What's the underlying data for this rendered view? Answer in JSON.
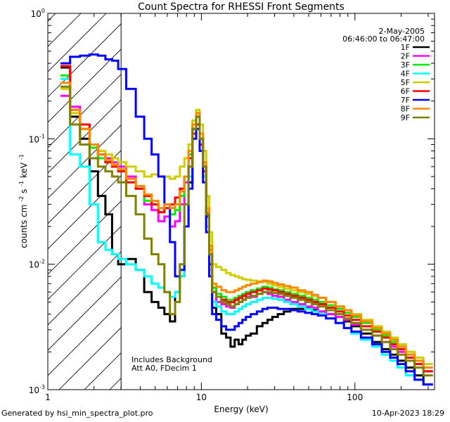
{
  "chart_data": {
    "type": "line",
    "title": "Count Spectra for RHESSI Front Segments",
    "xlabel": "Energy (keV)",
    "ylabel_parts": [
      "counts cm",
      "-2",
      " s",
      "-1",
      " keV",
      "-1"
    ],
    "xscale": "log",
    "yscale": "log",
    "xlim": [
      1.0,
      330.0
    ],
    "ylim": [
      0.001,
      1.0
    ],
    "x_ticks": [
      {
        "value": 1,
        "label": "1"
      },
      {
        "value": 10,
        "label": "10"
      },
      {
        "value": 100,
        "label": "100"
      }
    ],
    "y_ticks": [
      {
        "value": 1.0,
        "base": "10",
        "exp": "0"
      },
      {
        "value": 0.1,
        "base": "10",
        "exp": "-1"
      },
      {
        "value": 0.01,
        "base": "10",
        "exp": "-2"
      },
      {
        "value": 0.001,
        "base": "10",
        "exp": "-3"
      }
    ],
    "date_label": "2-May-2005",
    "time_range": "06:46:00 to 06:47:00",
    "annotations": [
      "Includes Background",
      "Att A0, FDecim 1"
    ],
    "hatched_region_x": [
      1.0,
      3.0
    ],
    "x": [
      1.3,
      1.5,
      1.75,
      2.0,
      2.25,
      2.5,
      2.75,
      3.0,
      3.5,
      4.0,
      4.5,
      5.0,
      5.5,
      6.0,
      6.5,
      7.0,
      7.5,
      8.0,
      8.5,
      9.0,
      9.5,
      10.0,
      10.5,
      11.0,
      11.5,
      12.0,
      13.0,
      14.0,
      15.0,
      16.0,
      17.0,
      18.0,
      19.0,
      20.0,
      22.0,
      24.0,
      26.0,
      28.0,
      30.0,
      33.0,
      36.0,
      40.0,
      45.0,
      50.0,
      55.0,
      60.0,
      70.0,
      80.0,
      90.0,
      100.0,
      120.0,
      140.0,
      160.0,
      180.0,
      200.0,
      230.0,
      260.0,
      300.0
    ],
    "series": [
      {
        "name": "1F",
        "color": "#000000",
        "values": [
          0.37,
          0.15,
          0.1,
          0.055,
          0.035,
          0.025,
          0.012,
          0.01,
          0.011,
          0.009,
          0.006,
          0.005,
          0.0045,
          0.004,
          0.0035,
          0.006,
          0.008,
          0.02,
          0.045,
          0.12,
          0.16,
          0.1,
          0.06,
          0.02,
          0.01,
          0.0045,
          0.004,
          0.0028,
          0.0026,
          0.0022,
          0.0025,
          0.0023,
          0.0025,
          0.0027,
          0.0028,
          0.0032,
          0.0034,
          0.0036,
          0.0038,
          0.004,
          0.0042,
          0.0044,
          0.0044,
          0.0045,
          0.0043,
          0.0042,
          0.004,
          0.0038,
          0.0035,
          0.0032,
          0.0028,
          0.0024,
          0.0021,
          0.0019,
          0.0017,
          0.0015,
          0.0013,
          0.0011
        ]
      },
      {
        "name": "2F",
        "color": "#ff00ff",
        "values": [
          0.22,
          0.18,
          0.13,
          0.09,
          0.075,
          0.07,
          0.065,
          0.06,
          0.05,
          0.04,
          0.03,
          0.027,
          0.022,
          0.024,
          0.02,
          0.022,
          0.03,
          0.045,
          0.07,
          0.12,
          0.15,
          0.1,
          0.06,
          0.025,
          0.012,
          0.006,
          0.005,
          0.0048,
          0.0046,
          0.0045,
          0.0048,
          0.005,
          0.0052,
          0.0055,
          0.0055,
          0.0058,
          0.006,
          0.0058,
          0.0056,
          0.0055,
          0.0052,
          0.005,
          0.0048,
          0.0046,
          0.0045,
          0.0042,
          0.004,
          0.0038,
          0.0036,
          0.0033,
          0.003,
          0.0027,
          0.0024,
          0.0022,
          0.002,
          0.0018,
          0.0016,
          0.0014
        ]
      },
      {
        "name": "3F",
        "color": "#00ee00",
        "values": [
          0.32,
          0.17,
          0.12,
          0.085,
          0.07,
          0.065,
          0.06,
          0.055,
          0.045,
          0.04,
          0.032,
          0.03,
          0.026,
          0.028,
          0.025,
          0.027,
          0.035,
          0.05,
          0.075,
          0.13,
          0.16,
          0.11,
          0.065,
          0.026,
          0.013,
          0.0065,
          0.0058,
          0.0055,
          0.0052,
          0.0052,
          0.0054,
          0.0056,
          0.0058,
          0.006,
          0.0062,
          0.0064,
          0.0066,
          0.0065,
          0.0063,
          0.0062,
          0.006,
          0.0058,
          0.0056,
          0.0054,
          0.0052,
          0.005,
          0.0047,
          0.0044,
          0.0041,
          0.0038,
          0.0034,
          0.003,
          0.0027,
          0.0024,
          0.0022,
          0.0019,
          0.0017,
          0.0015
        ]
      },
      {
        "name": "4F",
        "color": "#00ffff",
        "values": [
          0.3,
          0.075,
          0.06,
          0.03,
          0.015,
          0.013,
          0.012,
          0.011,
          0.01,
          0.009,
          0.008,
          0.007,
          0.0065,
          0.006,
          0.0055,
          0.006,
          0.008,
          0.02,
          0.05,
          0.12,
          0.15,
          0.09,
          0.05,
          0.02,
          0.009,
          0.005,
          0.0046,
          0.0042,
          0.004,
          0.004,
          0.0042,
          0.0044,
          0.0046,
          0.0048,
          0.005,
          0.0052,
          0.0054,
          0.0054,
          0.0053,
          0.0052,
          0.005,
          0.0048,
          0.0046,
          0.0044,
          0.0042,
          0.004,
          0.0037,
          0.0034,
          0.0031,
          0.0028,
          0.0025,
          0.0022,
          0.0019,
          0.0017,
          0.0015,
          0.0013,
          0.0012,
          0.0011
        ]
      },
      {
        "name": "5F",
        "color": "#cccc00",
        "values": [
          0.25,
          0.16,
          0.12,
          0.09,
          0.08,
          0.075,
          0.07,
          0.065,
          0.06,
          0.055,
          0.05,
          0.052,
          0.05,
          0.05,
          0.048,
          0.05,
          0.06,
          0.07,
          0.09,
          0.14,
          0.17,
          0.13,
          0.08,
          0.035,
          0.018,
          0.01,
          0.0095,
          0.009,
          0.0085,
          0.0082,
          0.008,
          0.0078,
          0.0076,
          0.0075,
          0.0074,
          0.0073,
          0.0072,
          0.007,
          0.0068,
          0.0066,
          0.0064,
          0.0062,
          0.006,
          0.0058,
          0.0056,
          0.0054,
          0.005,
          0.0046,
          0.0043,
          0.004,
          0.0036,
          0.0032,
          0.0029,
          0.0026,
          0.0023,
          0.002,
          0.0018,
          0.0016
        ]
      },
      {
        "name": "6F",
        "color": "#ff0000",
        "values": [
          0.38,
          0.17,
          0.13,
          0.09,
          0.075,
          0.065,
          0.06,
          0.055,
          0.045,
          0.04,
          0.035,
          0.03,
          0.026,
          0.028,
          0.03,
          0.034,
          0.04,
          0.05,
          0.07,
          0.11,
          0.13,
          0.09,
          0.055,
          0.024,
          0.012,
          0.006,
          0.0055,
          0.0052,
          0.005,
          0.005,
          0.0052,
          0.0054,
          0.0056,
          0.0058,
          0.006,
          0.0062,
          0.0064,
          0.0063,
          0.0062,
          0.006,
          0.0058,
          0.0056,
          0.0054,
          0.0052,
          0.005,
          0.0048,
          0.0045,
          0.0042,
          0.0039,
          0.0036,
          0.0032,
          0.0029,
          0.0026,
          0.0023,
          0.0021,
          0.0018,
          0.0016,
          0.0014
        ]
      },
      {
        "name": "7F",
        "color": "#0000ff",
        "values": [
          0.4,
          0.45,
          0.46,
          0.47,
          0.46,
          0.43,
          0.42,
          0.36,
          0.25,
          0.15,
          0.1,
          0.075,
          0.05,
          0.03,
          0.015,
          0.008,
          0.009,
          0.02,
          0.04,
          0.1,
          0.12,
          0.08,
          0.045,
          0.018,
          0.008,
          0.004,
          0.0036,
          0.0032,
          0.003,
          0.003,
          0.0032,
          0.0034,
          0.0036,
          0.0038,
          0.004,
          0.0042,
          0.0044,
          0.0045,
          0.0045,
          0.0044,
          0.0044,
          0.0043,
          0.0042,
          0.0041,
          0.004,
          0.0039,
          0.0037,
          0.0034,
          0.0031,
          0.0029,
          0.0026,
          0.0023,
          0.002,
          0.0018,
          0.0016,
          0.0014,
          0.0012,
          0.0011
        ]
      },
      {
        "name": "8F",
        "color": "#ff8800",
        "values": [
          0.28,
          0.17,
          0.12,
          0.09,
          0.075,
          0.068,
          0.062,
          0.057,
          0.048,
          0.042,
          0.036,
          0.032,
          0.028,
          0.03,
          0.028,
          0.03,
          0.038,
          0.05,
          0.08,
          0.13,
          0.16,
          0.11,
          0.065,
          0.028,
          0.014,
          0.007,
          0.0066,
          0.0062,
          0.006,
          0.006,
          0.0062,
          0.0064,
          0.0066,
          0.0068,
          0.007,
          0.0072,
          0.0074,
          0.0073,
          0.0071,
          0.0069,
          0.0067,
          0.0065,
          0.0062,
          0.006,
          0.0057,
          0.0054,
          0.005,
          0.0046,
          0.0043,
          0.0039,
          0.0035,
          0.0031,
          0.0028,
          0.0025,
          0.0022,
          0.0019,
          0.0017,
          0.0015
        ]
      },
      {
        "name": "9F",
        "color": "#808000",
        "values": [
          0.26,
          0.13,
          0.09,
          0.07,
          0.06,
          0.055,
          0.05,
          0.045,
          0.035,
          0.025,
          0.016,
          0.012,
          0.01,
          0.006,
          0.004,
          0.005,
          0.01,
          0.03,
          0.06,
          0.12,
          0.15,
          0.1,
          0.06,
          0.025,
          0.012,
          0.006,
          0.0055,
          0.005,
          0.0048,
          0.0046,
          0.0048,
          0.005,
          0.0052,
          0.0054,
          0.0056,
          0.0058,
          0.006,
          0.006,
          0.0059,
          0.0058,
          0.0056,
          0.0054,
          0.0052,
          0.005,
          0.0048,
          0.0046,
          0.0043,
          0.004,
          0.0037,
          0.0034,
          0.003,
          0.0027,
          0.0024,
          0.0021,
          0.0019,
          0.0017,
          0.0015,
          0.0013
        ]
      }
    ]
  },
  "footer": {
    "left": "Generated by hsi_min_spectra_plot.pro",
    "right": "10-Apr-2023 18:29"
  }
}
